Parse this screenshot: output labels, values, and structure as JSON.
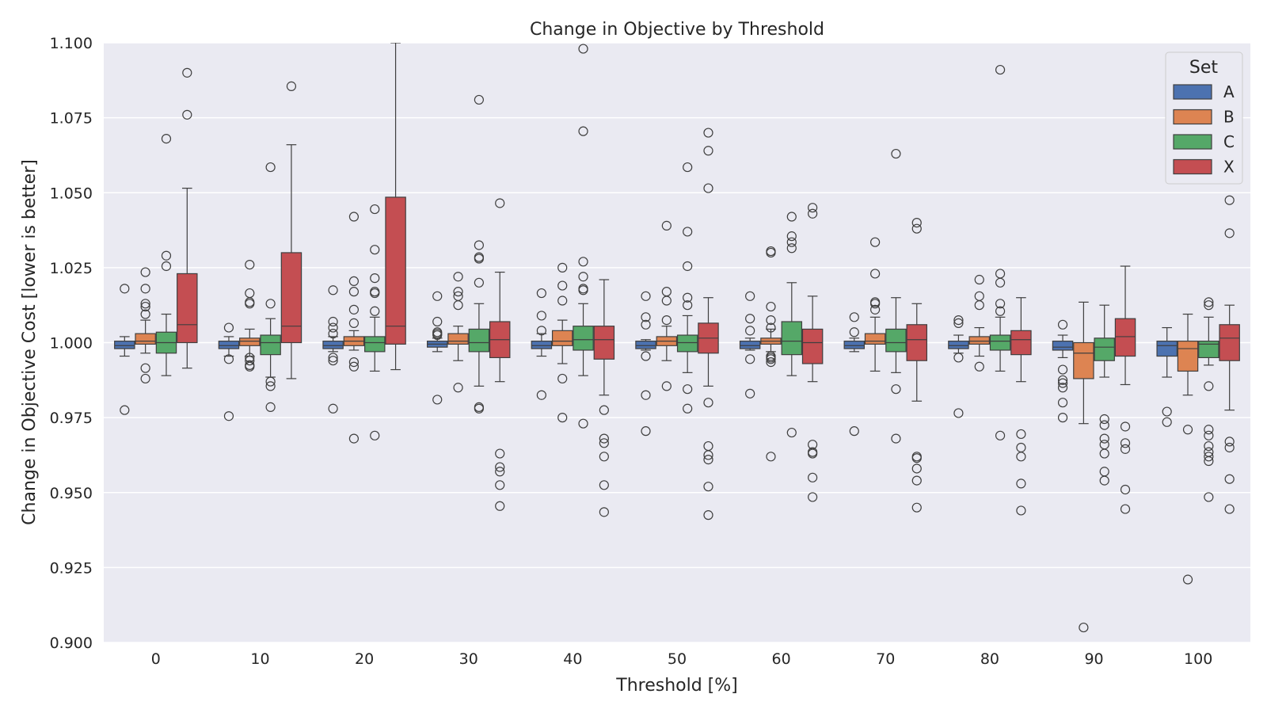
{
  "chart_data": {
    "type": "box",
    "title": "Change in Objective by Threshold",
    "xlabel": "Threshold [%]",
    "ylabel": "Change in Objective Cost [lower is better]",
    "categories": [
      "0",
      "10",
      "20",
      "30",
      "40",
      "50",
      "60",
      "70",
      "80",
      "90",
      "100"
    ],
    "ylim": [
      0.9,
      1.1
    ],
    "yticks": [
      "0.900",
      "0.925",
      "0.950",
      "0.975",
      "1.000",
      "1.025",
      "1.050",
      "1.075",
      "1.100"
    ],
    "grid": true,
    "legend": {
      "title": "Set",
      "position": "top-right"
    },
    "series": [
      {
        "name": "A",
        "color": "#4c72b0",
        "boxes": [
          {
            "low": 0.9955,
            "q1": 0.998,
            "median": 0.999,
            "q3": 1.0005,
            "high": 1.002,
            "outliers": [
              1.018,
              0.9775
            ]
          },
          {
            "low": 0.9955,
            "q1": 0.998,
            "median": 0.999,
            "q3": 1.0005,
            "high": 1.002,
            "outliers": [
              1.005,
              0.9945,
              0.9755
            ]
          },
          {
            "low": 0.997,
            "q1": 0.998,
            "median": 0.999,
            "q3": 1.0005,
            "high": 1.002,
            "outliers": [
              1.0175,
              1.007,
              1.005,
              1.003,
              0.995,
              0.994,
              0.978
            ]
          },
          {
            "low": 0.997,
            "q1": 0.9985,
            "median": 0.9995,
            "q3": 1.0005,
            "high": 1.0015,
            "outliers": [
              1.0155,
              1.007,
              1.0035,
              1.003,
              1.0025,
              0.981
            ]
          },
          {
            "low": 0.9955,
            "q1": 0.998,
            "median": 0.999,
            "q3": 1.0005,
            "high": 1.003,
            "outliers": [
              1.0165,
              1.009,
              1.004,
              0.9825
            ]
          },
          {
            "low": 0.9975,
            "q1": 0.998,
            "median": 0.999,
            "q3": 1.0005,
            "high": 1.001,
            "outliers": [
              1.0155,
              1.0085,
              1.006,
              0.9955,
              0.9825,
              0.9705
            ]
          },
          {
            "low": 0.9975,
            "q1": 0.998,
            "median": 0.999,
            "q3": 1.0005,
            "high": 1.0015,
            "outliers": [
              1.0155,
              1.008,
              1.004,
              0.9945,
              0.983
            ]
          },
          {
            "low": 0.997,
            "q1": 0.998,
            "median": 0.999,
            "q3": 1.0005,
            "high": 1.0015,
            "outliers": [
              1.0085,
              1.0035,
              0.9705
            ]
          },
          {
            "low": 0.9965,
            "q1": 0.998,
            "median": 0.999,
            "q3": 1.0005,
            "high": 1.0025,
            "outliers": [
              1.0075,
              1.0065,
              0.995,
              0.9765
            ]
          },
          {
            "low": 0.995,
            "q1": 0.9975,
            "median": 0.9985,
            "q3": 1.0005,
            "high": 1.0025,
            "outliers": [
              1.006,
              0.991,
              0.9875,
              0.9865,
              0.985,
              0.98,
              0.975
            ]
          },
          {
            "low": 0.9885,
            "q1": 0.9955,
            "median": 0.999,
            "q3": 1.0005,
            "high": 1.005,
            "outliers": [
              0.977,
              0.9735
            ]
          }
        ]
      },
      {
        "name": "B",
        "color": "#dd8452",
        "boxes": [
          {
            "low": 0.9965,
            "q1": 0.9995,
            "median": 1.0005,
            "q3": 1.003,
            "high": 1.0075,
            "outliers": [
              1.0235,
              1.018,
              1.013,
              1.012,
              1.0095,
              0.9915,
              0.988
            ]
          },
          {
            "low": 0.9955,
            "q1": 0.999,
            "median": 1.0005,
            "q3": 1.0015,
            "high": 1.0045,
            "outliers": [
              1.026,
              1.0165,
              1.0135,
              1.013,
              0.995,
              0.994,
              0.9925,
              0.992
            ]
          },
          {
            "low": 0.9975,
            "q1": 0.999,
            "median": 1.0005,
            "q3": 1.002,
            "high": 1.004,
            "outliers": [
              1.042,
              1.0205,
              1.017,
              1.011,
              1.0065,
              0.9935,
              0.992,
              0.968
            ]
          },
          {
            "low": 0.994,
            "q1": 0.9995,
            "median": 1.0005,
            "q3": 1.003,
            "high": 1.0055,
            "outliers": [
              1.022,
              1.017,
              1.0155,
              1.0125,
              0.985
            ]
          },
          {
            "low": 0.993,
            "q1": 0.999,
            "median": 1.0005,
            "q3": 1.004,
            "high": 1.0075,
            "outliers": [
              1.025,
              1.019,
              1.014,
              0.988,
              0.975
            ]
          },
          {
            "low": 0.994,
            "q1": 0.999,
            "median": 1.0005,
            "q3": 1.002,
            "high": 1.0055,
            "outliers": [
              1.039,
              1.017,
              1.014,
              1.0075,
              0.9855
            ]
          },
          {
            "low": 0.997,
            "q1": 0.9995,
            "median": 1.0005,
            "q3": 1.0015,
            "high": 1.0045,
            "outliers": [
              1.0305,
              1.03,
              1.012,
              1.0075,
              1.005,
              0.9955,
              0.995,
              0.9945,
              0.9935,
              0.962
            ]
          },
          {
            "low": 0.9905,
            "q1": 0.9995,
            "median": 1.0005,
            "q3": 1.003,
            "high": 1.0085,
            "outliers": [
              1.0335,
              1.023,
              1.0135,
              1.013,
              1.011
            ]
          },
          {
            "low": 0.9955,
            "q1": 0.9995,
            "median": 1.0005,
            "q3": 1.002,
            "high": 1.005,
            "outliers": [
              1.021,
              1.0155,
              1.0125,
              0.992
            ]
          },
          {
            "low": 0.973,
            "q1": 0.988,
            "median": 0.9965,
            "q3": 1.0,
            "high": 1.0135,
            "outliers": [
              0.905
            ]
          },
          {
            "low": 0.9825,
            "q1": 0.9905,
            "median": 0.998,
            "q3": 1.0005,
            "high": 1.0095,
            "outliers": [
              0.971,
              0.921
            ]
          }
        ]
      },
      {
        "name": "C",
        "color": "#55a868",
        "boxes": [
          {
            "low": 0.989,
            "q1": 0.9965,
            "median": 1.0,
            "q3": 1.0035,
            "high": 1.0095,
            "outliers": [
              1.068,
              1.029,
              1.0255
            ]
          },
          {
            "low": 0.9885,
            "q1": 0.996,
            "median": 1.0,
            "q3": 1.0025,
            "high": 1.008,
            "outliers": [
              1.0585,
              1.013,
              0.987,
              0.9855,
              0.9785
            ]
          },
          {
            "low": 0.9905,
            "q1": 0.997,
            "median": 1.0,
            "q3": 1.002,
            "high": 1.0085,
            "outliers": [
              1.0445,
              1.031,
              1.0215,
              1.017,
              1.0165,
              1.0105,
              0.969
            ]
          },
          {
            "low": 0.9855,
            "q1": 0.997,
            "median": 1.0,
            "q3": 1.0045,
            "high": 1.013,
            "outliers": [
              1.081,
              1.0325,
              1.0285,
              1.028,
              1.02,
              0.9785,
              0.978
            ]
          },
          {
            "low": 0.989,
            "q1": 0.9975,
            "median": 1.001,
            "q3": 1.0055,
            "high": 1.013,
            "outliers": [
              1.098,
              1.0705,
              1.027,
              1.022,
              1.018,
              1.0175,
              0.973
            ]
          },
          {
            "low": 0.99,
            "q1": 0.997,
            "median": 1.0,
            "q3": 1.0025,
            "high": 1.009,
            "outliers": [
              1.0585,
              1.037,
              1.0255,
              1.015,
              1.0125,
              0.9845,
              0.978
            ]
          },
          {
            "low": 0.989,
            "q1": 0.996,
            "median": 1.0005,
            "q3": 1.007,
            "high": 1.02,
            "outliers": [
              1.042,
              1.0355,
              1.0335,
              1.0315,
              0.97
            ]
          },
          {
            "low": 0.99,
            "q1": 0.997,
            "median": 1.0,
            "q3": 1.0045,
            "high": 1.015,
            "outliers": [
              1.063,
              0.9845,
              0.968
            ]
          },
          {
            "low": 0.9905,
            "q1": 0.9975,
            "median": 1.0005,
            "q3": 1.0025,
            "high": 1.0085,
            "outliers": [
              1.091,
              1.023,
              1.02,
              1.013,
              1.0105,
              0.969
            ]
          },
          {
            "low": 0.9885,
            "q1": 0.994,
            "median": 0.9985,
            "q3": 1.0015,
            "high": 1.0125,
            "outliers": [
              0.9745,
              0.9725,
              0.968,
              0.966,
              0.963,
              0.957,
              0.954
            ]
          },
          {
            "low": 0.9925,
            "q1": 0.995,
            "median": 0.9995,
            "q3": 1.0005,
            "high": 1.0085,
            "outliers": [
              1.0135,
              1.0125,
              0.9855,
              0.971,
              0.969,
              0.9655,
              0.9635,
              0.962,
              0.9605,
              0.9485
            ]
          }
        ]
      },
      {
        "name": "X",
        "color": "#c44e52",
        "boxes": [
          {
            "low": 0.9915,
            "q1": 1.0,
            "median": 1.006,
            "q3": 1.023,
            "high": 1.0515,
            "outliers": [
              1.09,
              1.076
            ]
          },
          {
            "low": 0.988,
            "q1": 1.0,
            "median": 1.0055,
            "q3": 1.03,
            "high": 1.066,
            "outliers": [
              1.0855
            ]
          },
          {
            "low": 0.991,
            "q1": 0.9995,
            "median": 1.0055,
            "q3": 1.0485,
            "high": 1.1,
            "outliers": []
          },
          {
            "low": 0.987,
            "q1": 0.995,
            "median": 1.001,
            "q3": 1.007,
            "high": 1.0235,
            "outliers": [
              1.0465,
              0.963,
              0.9585,
              0.957,
              0.9525,
              0.9455
            ]
          },
          {
            "low": 0.9825,
            "q1": 0.9945,
            "median": 1.001,
            "q3": 1.0055,
            "high": 1.021,
            "outliers": [
              0.9775,
              0.968,
              0.9665,
              0.962,
              0.9525,
              0.9435
            ]
          },
          {
            "low": 0.9855,
            "q1": 0.9965,
            "median": 1.0015,
            "q3": 1.0065,
            "high": 1.015,
            "outliers": [
              1.07,
              1.064,
              1.0515,
              0.98,
              0.9655,
              0.9625,
              0.961,
              0.952,
              0.9425
            ]
          },
          {
            "low": 0.987,
            "q1": 0.993,
            "median": 1.0,
            "q3": 1.0045,
            "high": 1.0155,
            "outliers": [
              1.045,
              1.043,
              0.966,
              0.9635,
              0.963,
              0.955,
              0.9485
            ]
          },
          {
            "low": 0.9805,
            "q1": 0.994,
            "median": 1.001,
            "q3": 1.006,
            "high": 1.013,
            "outliers": [
              1.04,
              1.038,
              0.962,
              0.9615,
              0.958,
              0.954,
              0.945
            ]
          },
          {
            "low": 0.987,
            "q1": 0.996,
            "median": 1.001,
            "q3": 1.004,
            "high": 1.015,
            "outliers": [
              0.9695,
              0.965,
              0.962,
              0.953,
              0.944
            ]
          },
          {
            "low": 0.986,
            "q1": 0.9955,
            "median": 1.002,
            "q3": 1.008,
            "high": 1.0255,
            "outliers": [
              0.972,
              0.9665,
              0.9645,
              0.951,
              0.9445
            ]
          },
          {
            "low": 0.9775,
            "q1": 0.994,
            "median": 1.0015,
            "q3": 1.006,
            "high": 1.0125,
            "outliers": [
              1.0475,
              1.0365,
              0.967,
              0.965,
              0.9545,
              0.9445
            ]
          }
        ]
      }
    ]
  }
}
